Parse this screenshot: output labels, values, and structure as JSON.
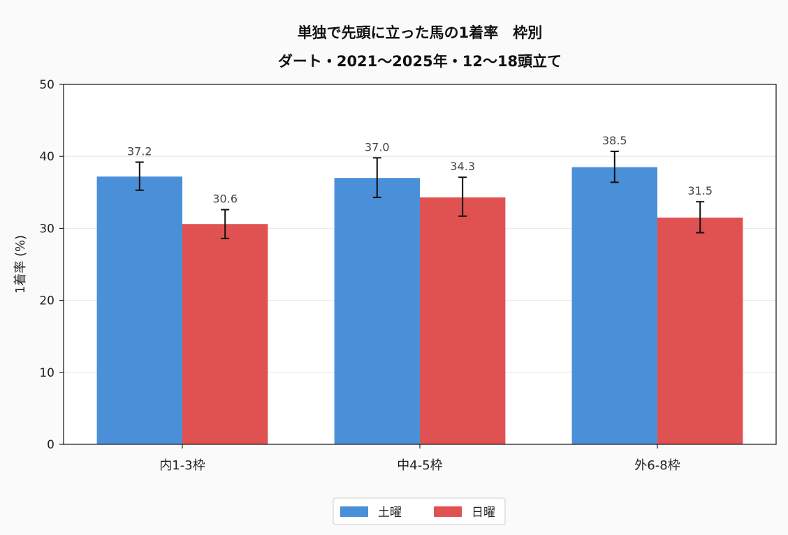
{
  "chart_data": {
    "type": "bar",
    "title": [
      "単独で先頭に立った馬の1着率　枠別",
      "ダート・2021〜2025年・12〜18頭立て"
    ],
    "xlabel": "",
    "ylabel": "1着率 (%)",
    "ylim": [
      0,
      50
    ],
    "yticks": [
      0,
      10,
      20,
      30,
      40,
      50
    ],
    "grid": "y",
    "legend_position": "bottom-center",
    "categories": [
      "内1-3枠",
      "中4-5枠",
      "外6-8枠"
    ],
    "series": [
      {
        "name": "土曜",
        "color": "#4a90d9",
        "values": [
          37.2,
          37.0,
          38.5
        ],
        "labels": [
          "37.2",
          "37.0",
          "38.5"
        ],
        "error_low": [
          35.3,
          34.3,
          36.4
        ],
        "error_high": [
          39.2,
          39.8,
          40.7
        ]
      },
      {
        "name": "日曜",
        "color": "#e05252",
        "values": [
          30.6,
          34.3,
          31.5
        ],
        "labels": [
          "30.6",
          "34.3",
          "31.5"
        ],
        "error_low": [
          28.6,
          31.7,
          29.4
        ],
        "error_high": [
          32.6,
          37.1,
          33.7
        ]
      }
    ]
  }
}
